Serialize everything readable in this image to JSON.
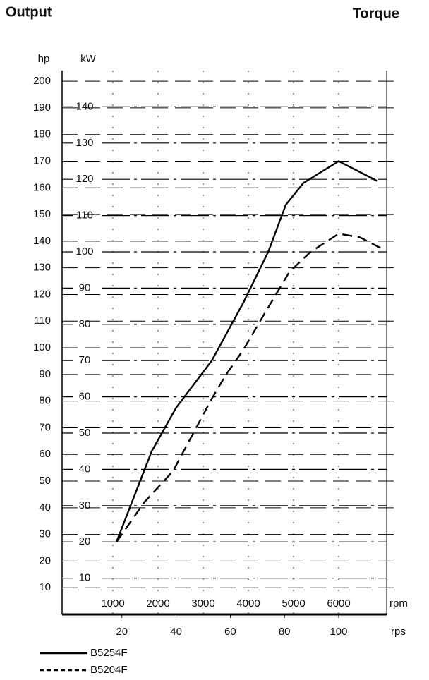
{
  "chart_data": {
    "type": "line",
    "title": "Output",
    "subtitle": "Torque",
    "y_label": "kW",
    "y2_label": "hp",
    "x_label": "rpm",
    "x2_label": "rps",
    "xlim": [
      0,
      7000
    ],
    "xticks": [
      1000,
      2000,
      3000,
      4000,
      5000,
      6000
    ],
    "x2lim": [
      0,
      116.67
    ],
    "x2ticks": [
      20,
      40,
      60,
      80,
      100
    ],
    "ylim": [
      0,
      150
    ],
    "yticks": [
      10,
      20,
      30,
      40,
      50,
      60,
      70,
      80,
      90,
      100,
      110,
      120,
      130,
      140
    ],
    "y2lim": [
      0,
      204
    ],
    "y2ticks": [
      10,
      20,
      30,
      40,
      50,
      60,
      70,
      80,
      90,
      100,
      110,
      120,
      130,
      140,
      150,
      160,
      170,
      180,
      190,
      200
    ],
    "grid": true,
    "legend": "bottom-left",
    "series": [
      {
        "name": "B5254F",
        "color": "#000000",
        "dash": "solid",
        "x": [
          1080,
          1860,
          2400,
          3190,
          3890,
          4440,
          4830,
          5220,
          6000,
          6860
        ],
        "values": [
          20,
          45,
          57,
          70,
          86,
          100,
          113,
          119,
          125,
          119.5
        ]
      },
      {
        "name": "B5204F",
        "color": "#000000",
        "dash": "dashed",
        "x": [
          1080,
          1700,
          2330,
          3190,
          3500,
          3890,
          4360,
          4910,
          5380,
          6000,
          6470,
          6940
        ],
        "values": [
          20,
          31,
          39.5,
          59.5,
          66,
          73,
          83,
          94.5,
          100,
          105,
          104,
          101
        ]
      }
    ]
  }
}
